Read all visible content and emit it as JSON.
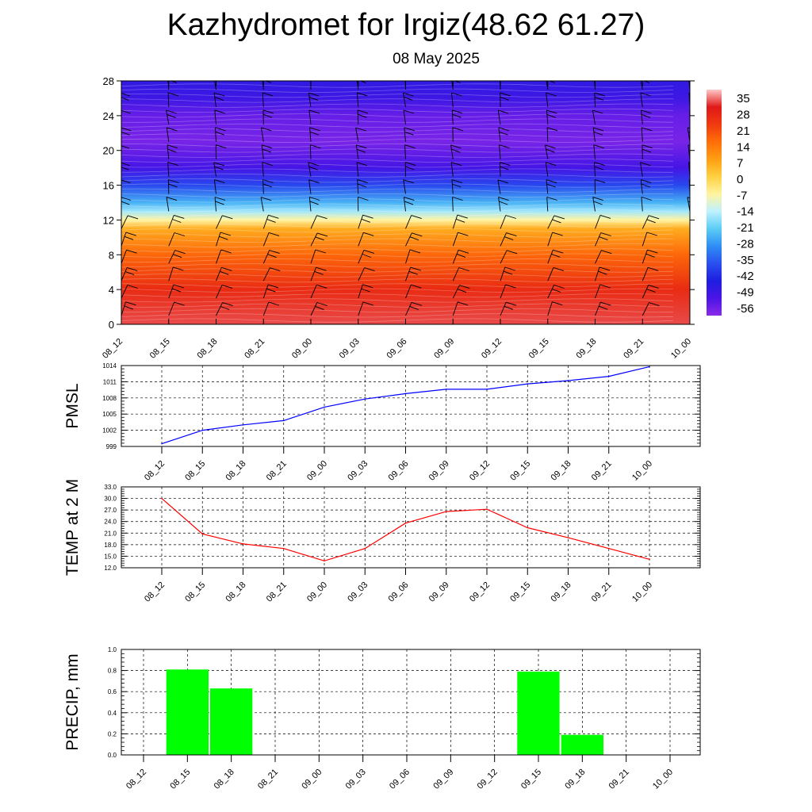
{
  "title": "Kazhydromet for Irgiz(48.62 61.27)",
  "subtitle": "08 May 2025",
  "time_labels": [
    "08_12",
    "08_15",
    "08_18",
    "08_21",
    "09_00",
    "09_03",
    "09_06",
    "09_09",
    "09_12",
    "09_15",
    "09_18",
    "09_21",
    "10_00"
  ],
  "chart_data": [
    {
      "type": "heatmap",
      "name": "temperature cross-section",
      "x": [
        "08_12",
        "08_15",
        "08_18",
        "08_21",
        "09_00",
        "09_03",
        "09_06",
        "09_09",
        "09_12",
        "09_15",
        "09_18",
        "09_21",
        "10_00"
      ],
      "y_ticks": [
        0,
        4,
        8,
        12,
        16,
        20,
        24,
        28
      ],
      "ylim": [
        0,
        28
      ],
      "colorbar_ticks": [
        35,
        28,
        21,
        14,
        7,
        0,
        -7,
        -14,
        -21,
        -28,
        -35,
        -42,
        -49,
        -56
      ],
      "colorbar_colors": [
        "#ffc8c8",
        "#e01818",
        "#f03a10",
        "#ff6e08",
        "#ff9e12",
        "#ffd040",
        "#fff4a0",
        "#bff2ff",
        "#5acdf5",
        "#2f8ef5",
        "#2a4ff0",
        "#1e1ee0",
        "#4b14e6",
        "#8a2be8"
      ],
      "profile_by_level": [
        {
          "level": 0,
          "value": 30
        },
        {
          "level": 4,
          "value": 24
        },
        {
          "level": 8,
          "value": 15
        },
        {
          "level": 11,
          "value": 5
        },
        {
          "level": 12,
          "value": -7
        },
        {
          "level": 13,
          "value": -16
        },
        {
          "level": 14,
          "value": -24
        },
        {
          "level": 16,
          "value": -36
        },
        {
          "level": 18,
          "value": -48
        },
        {
          "level": 21,
          "value": -54
        },
        {
          "level": 24,
          "value": -52
        },
        {
          "level": 26,
          "value": -47
        },
        {
          "level": 28,
          "value": -45
        }
      ],
      "wind_barbs": true
    },
    {
      "type": "line",
      "ylabel": "PMSL",
      "y_ticks": [
        999,
        1002,
        1005,
        1008,
        1011,
        1014
      ],
      "ylim": [
        999,
        1014
      ],
      "color": "#0000ff",
      "values": [
        999.5,
        1002.0,
        1003.0,
        1003.8,
        1006.3,
        1007.8,
        1008.8,
        1009.6,
        1009.6,
        1010.6,
        1011.2,
        1012.0,
        1013.8
      ],
      "grid": true
    },
    {
      "type": "line",
      "ylabel": "TEMP at 2 M",
      "y_ticks": [
        "12.0",
        "15.0",
        "18.0",
        "21.0",
        "24.0",
        "27.0",
        "30.0",
        "33.0"
      ],
      "ylim": [
        12,
        33
      ],
      "color": "#ff0000",
      "values": [
        30.0,
        20.8,
        18.2,
        17.0,
        13.8,
        17.0,
        23.6,
        26.6,
        27.2,
        22.4,
        19.8,
        17.0,
        14.2
      ],
      "grid": true
    },
    {
      "type": "bar",
      "ylabel": "PRECIP, mm",
      "y_ticks": [
        "0.0",
        "0.2",
        "0.4",
        "0.6",
        "0.8",
        "1.0"
      ],
      "ylim": [
        0,
        1.0
      ],
      "color": "#00ff00",
      "values": [
        0,
        0.81,
        0.63,
        0,
        0,
        0,
        0,
        0,
        0,
        0.79,
        0.19,
        0,
        0
      ],
      "grid": true
    }
  ]
}
